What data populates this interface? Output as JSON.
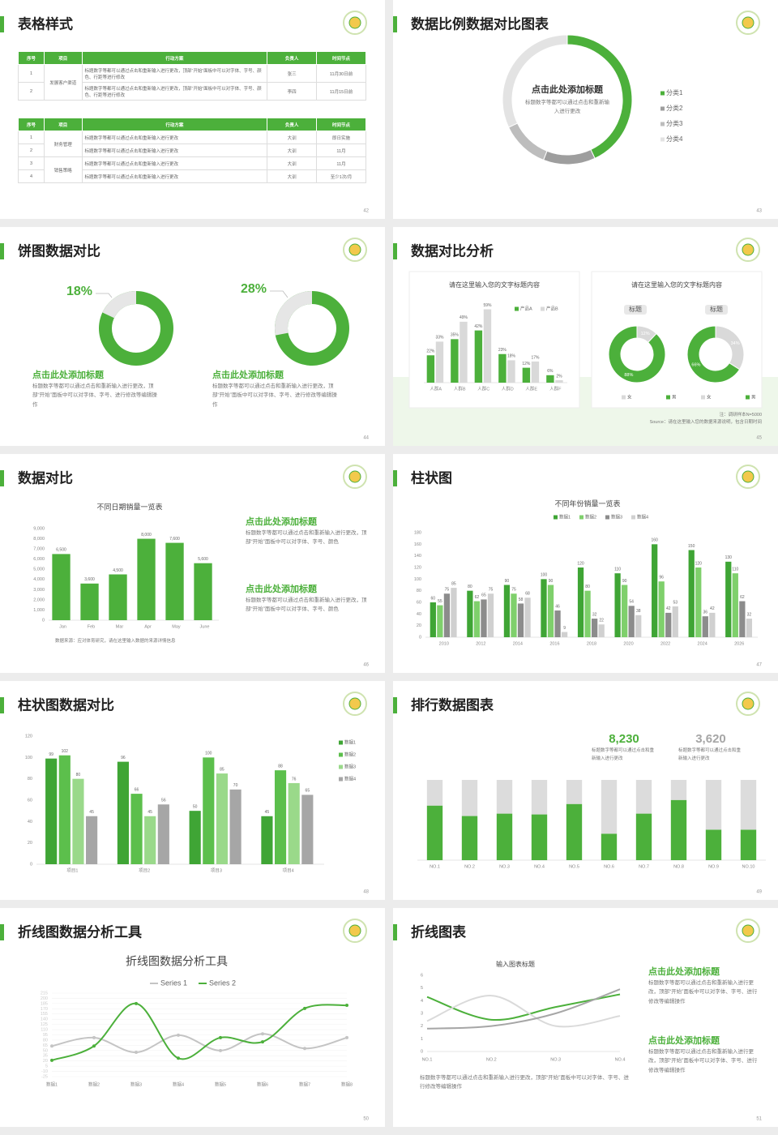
{
  "slides": [
    {
      "title": "表格样式",
      "page": 42,
      "tables": [
        {
          "header": [
            "序号",
            "项目",
            "行动方案",
            "负责人",
            "时间节点"
          ],
          "groups": [
            {
              "item": "发展客户渠道",
              "rows": [
                [
                  "1",
                  "标题数字等都可以通过点击和重新输入进行更改，顶部“开始”面板中可以对字体、字号、颜色、行距等进行修改",
                  "张三",
                  "11月30日前"
                ],
                [
                  "2",
                  "标题数字等都可以通过点击和重新输入进行更改，顶部“开始”面板中可以对字体、字号、颜色、行距等进行修改",
                  "李四",
                  "11月15日前"
                ]
              ]
            }
          ]
        },
        {
          "header": [
            "序号",
            "项目",
            "行动方案",
            "负责人",
            "时间节点"
          ],
          "groups": [
            {
              "item": "财务管理",
              "rows": [
                [
                  "1",
                  "标题数字等都可以通过点击和重新输入进行更改",
                  "大训",
                  "即日实施"
                ],
                [
                  "2",
                  "标题数字等都可以通过点击和重新输入进行更改",
                  "大训",
                  "11月"
                ]
              ]
            },
            {
              "item": "销售策略",
              "rows": [
                [
                  "3",
                  "标题数字等都可以通过点击和重新输入进行更改",
                  "大训",
                  "11月"
                ],
                [
                  "4",
                  "标题数字等都可以通过点击和重新输入进行更改",
                  "大训",
                  "至少1次/月"
                ]
              ]
            }
          ]
        }
      ]
    },
    {
      "title": "数据比例数据对比图表",
      "page": 43
    },
    {
      "title": "饼图数据对比",
      "page": 44,
      "blocks": [
        {
          "heading": "点击此处添加标题",
          "body": "标题数字等都可以通过点击和重新输入进行更改，顶部“开始”面板中可以对字体、字号、进行修改等编辑操作"
        },
        {
          "heading": "点击此处添加标题",
          "body": "标题数字等都可以通过点击和重新输入进行更改，顶部“开始”面板中可以对字体、字号、进行修改等编辑操作"
        }
      ]
    },
    {
      "title": "数据对比分析",
      "page": 45,
      "panels": [
        "请在这里输入您的文字标题内容",
        "请在这里输入您的文字标题内容"
      ],
      "notes": [
        "注：调研样本N=5000",
        "Source：请在这里输入您的数据来源说明，包含日期时间"
      ]
    },
    {
      "title": "数据对比",
      "page": 46,
      "blocks": [
        {
          "heading": "点击此处添加标题",
          "body": "标题数字等都可以通过点击和重新输入进行更改，顶部“开始”面板中可以对字体、字号、颜色"
        },
        {
          "heading": "点击此处添加标题",
          "body": "标题数字等都可以通过点击和重新输入进行更改，顶部“开始”面板中可以对字体、字号、颜色"
        }
      ],
      "notes": [
        "数据来源：应对体育研究，请在这里输入数据的来源详情信息"
      ]
    },
    {
      "title": "柱状图",
      "page": 47
    },
    {
      "title": "柱状图数据对比",
      "page": 48
    },
    {
      "title": "排行数据图表",
      "page": 49,
      "kpis": [
        {
          "value": "8,230",
          "text": "标题数字等都可以通过点击和重新输入进行更改"
        },
        {
          "value": "3,620",
          "text": "标题数字等都可以通过点击和重新输入进行更改"
        }
      ]
    },
    {
      "title": "折线图数据分析工具",
      "page": 50
    },
    {
      "title": "折线图表",
      "page": 51,
      "blocks": [
        {
          "heading": "点击此处添加标题",
          "body": "标题数字等都可以通过点击和重新输入进行更改，顶部“开始”面板中可以对字体、字号、进行修改等编辑操作"
        },
        {
          "heading": "点击此处添加标题",
          "body": "标题数字等都可以通过点击和重新输入进行更改，顶部“开始”面板中可以对字体、字号、进行修改等编辑操作"
        }
      ],
      "notes": [
        "标题数字等都可以通过点击和重新输入进行更改，顶部“开始”面板中可以对字体、字号、进行修改等编辑操作"
      ]
    }
  ],
  "chart_data": [
    {
      "type": "pie",
      "donut": true,
      "categories": [
        "分类1",
        "分类2",
        "分类3",
        "分类4"
      ],
      "values": [
        43,
        13,
        12,
        32
      ],
      "colors": [
        "#4cb03b",
        "#9e9e9e",
        "#bdbdbd",
        "#e3e3e3"
      ],
      "center_title": "点击此处添加标题",
      "center_text": "标题数字等都可以通过点击和重新输入进行更改",
      "legend": "right"
    },
    {
      "type": "ring",
      "value": 18,
      "value_label": "18%",
      "color": "#e6e6e6",
      "track_color": "#4cb03b"
    },
    {
      "type": "ring",
      "value": 28,
      "value_label": "28%",
      "color": "#e6e6e6",
      "track_color": "#4cb03b"
    },
    {
      "type": "bar",
      "categories": [
        "人群A",
        "人群B",
        "人群C",
        "人群D",
        "人群E",
        "人群F"
      ],
      "series": [
        {
          "name": "产品A",
          "color": "#4cb03b",
          "values": [
            22,
            35,
            42,
            23,
            12,
            6
          ],
          "value_labels": [
            "22%",
            "35%",
            "42%",
            "23%",
            "12%",
            "6%"
          ]
        },
        {
          "name": "产品B",
          "color": "#d9d9d9",
          "values": [
            33,
            49,
            59,
            18,
            17,
            2
          ],
          "value_labels": [
            "33%",
            "49%",
            "59%",
            "18%",
            "17%",
            "2%"
          ]
        }
      ],
      "ylim": [
        0,
        60
      ],
      "legend": "top-right"
    },
    {
      "type": "pie",
      "donut": true,
      "title": "标题",
      "categories": [
        "女",
        "男"
      ],
      "values": [
        12,
        88
      ],
      "value_labels": [
        "12%",
        "88%"
      ],
      "colors": [
        "#d9d9d9",
        "#4cb03b"
      ],
      "legend": "bottom"
    },
    {
      "type": "pie",
      "donut": true,
      "title": "标题",
      "categories": [
        "女",
        "男"
      ],
      "values": [
        34,
        66
      ],
      "value_labels": [
        "34%",
        "66%"
      ],
      "colors": [
        "#d9d9d9",
        "#4cb03b"
      ],
      "legend": "bottom"
    },
    {
      "type": "bar",
      "title": "不同日期销量一览表",
      "categories": [
        "Jan",
        "Feb",
        "Mar",
        "Apr",
        "May",
        "June"
      ],
      "series": [
        {
          "color": "#4cb03b",
          "values": [
            6500,
            3600,
            4500,
            8000,
            7600,
            5600
          ],
          "value_labels": [
            "6,500",
            "3,600",
            "4,500",
            "8,000",
            "7,600",
            "5,600"
          ]
        }
      ],
      "ylim": [
        0,
        9000
      ],
      "yticks": [
        0,
        {
          "value": 1000,
          "label": "1,000"
        },
        {
          "value": 2000,
          "label": "2,000"
        },
        {
          "value": 3000,
          "label": "3,000"
        },
        {
          "value": 4000,
          "label": "4,000"
        },
        {
          "value": 5000,
          "label": "5,000"
        },
        {
          "value": 6000,
          "label": "6,000"
        },
        {
          "value": 7000,
          "label": "7,000"
        },
        {
          "value": 8000,
          "label": "8,000"
        },
        {
          "value": 9000,
          "label": "9,000"
        }
      ]
    },
    {
      "type": "bar",
      "title": "不同年份销量一览表",
      "categories": [
        "2010",
        "2012",
        "2014",
        "2016",
        "2018",
        "2020",
        "2022",
        "2024",
        "2026"
      ],
      "series": [
        {
          "name": "数据1",
          "color": "#3fa535",
          "values": [
            60,
            80,
            90,
            100,
            120,
            110,
            160,
            150,
            130
          ]
        },
        {
          "name": "数据2",
          "color": "#7fd06c",
          "values": [
            55,
            62,
            75,
            90,
            80,
            90,
            96,
            120,
            110
          ]
        },
        {
          "name": "数据3",
          "color": "#8c8c8c",
          "values": [
            75,
            65,
            58,
            46,
            32,
            54,
            42,
            36,
            62
          ]
        },
        {
          "name": "数据4",
          "color": "#d0d0d0",
          "values": [
            85,
            75,
            68,
            9,
            22,
            38,
            53,
            42,
            32
          ]
        }
      ],
      "ylim": [
        0,
        180
      ],
      "yticks": [
        0,
        20,
        40,
        60,
        80,
        100,
        120,
        140,
        160,
        180
      ],
      "data_labels": true,
      "legend": "top"
    },
    {
      "type": "bar",
      "categories": [
        "项目1",
        "项目2",
        "项目3",
        "项目4"
      ],
      "series": [
        {
          "name": "数据1",
          "color": "#3fa535",
          "values": [
            99,
            96,
            50,
            45
          ]
        },
        {
          "name": "数据2",
          "color": "#5cbf4c",
          "values": [
            102,
            66,
            100,
            88
          ]
        },
        {
          "name": "数据3",
          "color": "#9ad98a",
          "values": [
            80,
            45,
            85,
            76
          ]
        },
        {
          "name": "数据4",
          "color": "#a6a6a6",
          "values": [
            45,
            56,
            70,
            65
          ]
        }
      ],
      "ylim": [
        0,
        120
      ],
      "yticks": [
        0,
        20,
        40,
        60,
        80,
        100,
        120
      ],
      "data_labels": true,
      "legend": "right"
    },
    {
      "type": "bar",
      "stacked": true,
      "categories": [
        "NO.1",
        "NO.2",
        "NO.3",
        "NO.4",
        "NO.5",
        "NO.6",
        "NO.7",
        "NO.8",
        "NO.9",
        "NO.10"
      ],
      "series": [
        {
          "color": "#4cb03b",
          "values": [
            68,
            55,
            58,
            57,
            70,
            33,
            58,
            75,
            38,
            38
          ]
        },
        {
          "color": "#dcdcdc",
          "values": [
            32,
            45,
            42,
            43,
            30,
            67,
            42,
            25,
            62,
            62
          ]
        }
      ],
      "ylim": [
        0,
        100
      ]
    },
    {
      "type": "line",
      "smooth": true,
      "markers": true,
      "title": "折线图数据分析工具",
      "categories": [
        "数据1",
        "数据2",
        "数据3",
        "数据4",
        "数据5",
        "数据6",
        "数据7",
        "数据8"
      ],
      "series": [
        {
          "name": "Series 1",
          "color": "#c4c4c4",
          "values": [
            63,
            87,
            45,
            94,
            50,
            98,
            56,
            87
          ]
        },
        {
          "name": "Series 2",
          "color": "#4cb03b",
          "values": [
            22,
            63,
            185,
            28,
            87,
            75,
            171,
            180
          ]
        }
      ],
      "ylim": [
        -25,
        215
      ],
      "yticks": [
        -25,
        -10,
        5,
        20,
        35,
        50,
        65,
        80,
        95,
        110,
        125,
        140,
        155,
        170,
        185,
        200,
        215
      ],
      "grid": true,
      "legend": "top"
    },
    {
      "type": "line",
      "smooth": true,
      "title": "输入图表标题",
      "categories": [
        "NO.1",
        "NO.2",
        "NO.3",
        "NO.4"
      ],
      "series": [
        {
          "color": "#4cb03b",
          "values": [
            4.3,
            2.5,
            3.5,
            4.5
          ]
        },
        {
          "color": "#dadada",
          "values": [
            2.4,
            4.4,
            2.0,
            2.8
          ]
        },
        {
          "color": "#a6a6a6",
          "values": [
            1.8,
            2.0,
            3.0,
            4.9
          ]
        }
      ],
      "ylim": [
        0,
        6
      ],
      "yticks": [
        0,
        1,
        2,
        3,
        4,
        5,
        6
      ]
    }
  ]
}
